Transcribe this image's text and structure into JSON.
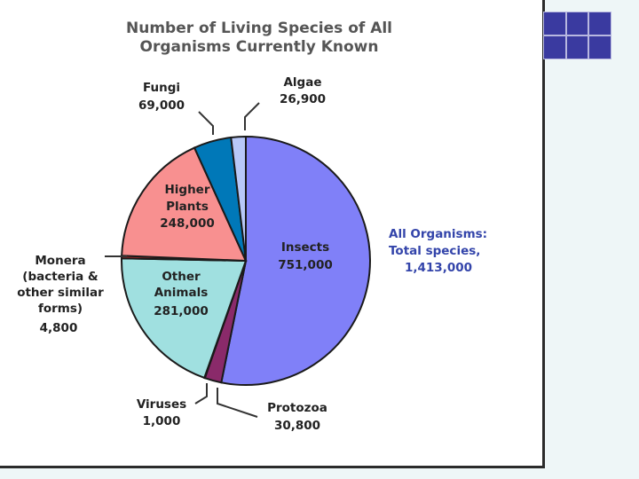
{
  "chart_data": {
    "type": "pie",
    "title_lines": [
      "Number of Living Species of All",
      "Organisms Currently Known"
    ],
    "total_label_lines": [
      "All Organisms:",
      "Total species,",
      "1,413,000"
    ],
    "slices": [
      {
        "name": "Insects",
        "value": 751000,
        "value_text": "751,000",
        "color": "#8080f8"
      },
      {
        "name": "Protozoa",
        "value": 30800,
        "value_text": "30,800",
        "color": "#8a2a6a"
      },
      {
        "name": "Viruses",
        "value": 1000,
        "value_text": "1,000",
        "color": "#e05020"
      },
      {
        "name": "Other Animals",
        "value": 281000,
        "value_text": "281,000",
        "color": "#a0e0e0"
      },
      {
        "name": "Monera (bacteria & other similar forms)",
        "value": 4800,
        "value_text": "4,800",
        "color": "#c83030"
      },
      {
        "name": "Higher Plants",
        "value": 248000,
        "value_text": "248,000",
        "color": "#f89090"
      },
      {
        "name": "Fungi",
        "value": 69000,
        "value_text": "69,000",
        "color": "#0078b8"
      },
      {
        "name": "Algae",
        "value": 26900,
        "value_text": "26,900",
        "color": "#b8c8f8"
      }
    ]
  },
  "labels": {
    "insects": [
      "Insects",
      "751,000"
    ],
    "protozoa": [
      "Protozoa",
      "30,800"
    ],
    "viruses": [
      "Viruses",
      "1,000"
    ],
    "other_animals": [
      "Other",
      "Animals",
      "281,000"
    ],
    "monera": [
      "Monera",
      "(bacteria &",
      "other similar",
      "forms)",
      "4,800"
    ],
    "higher_plants": [
      "Higher",
      "Plants",
      "248,000"
    ],
    "fungi": [
      "Fungi",
      "69,000"
    ],
    "algae": [
      "Algae",
      "26,900"
    ]
  }
}
